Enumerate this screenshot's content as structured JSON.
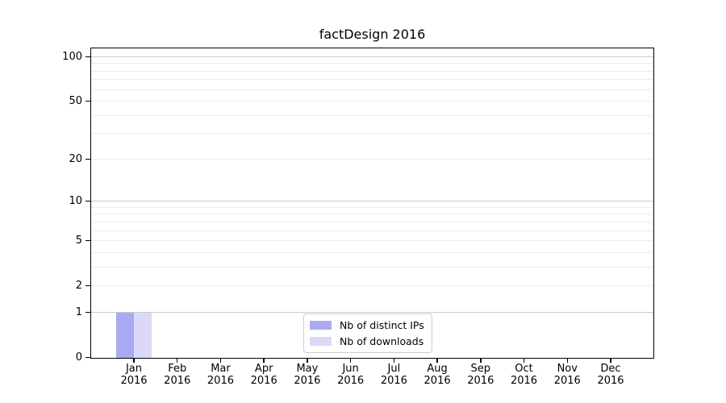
{
  "chart_data": {
    "type": "bar",
    "title": "factDesign 2016",
    "categories": [
      "Jan\n2016",
      "Feb\n2016",
      "Mar\n2016",
      "Apr\n2016",
      "May\n2016",
      "Jun\n2016",
      "Jul\n2016",
      "Aug\n2016",
      "Sep\n2016",
      "Oct\n2016",
      "Nov\n2016",
      "Dec\n2016"
    ],
    "series": [
      {
        "name": "Nb of distinct IPs",
        "color": "#aaaaf3",
        "values": [
          1,
          0,
          0,
          0,
          0,
          0,
          0,
          0,
          0,
          0,
          0,
          0
        ]
      },
      {
        "name": "Nb of downloads",
        "color": "#dadaf8",
        "values": [
          1,
          0,
          0,
          0,
          0,
          0,
          0,
          0,
          0,
          0,
          0,
          0
        ]
      }
    ],
    "xlabel": "",
    "ylabel": "",
    "yscale": "log1p",
    "ylim": [
      0,
      113
    ],
    "yticks": [
      {
        "value": 0,
        "label": "0"
      },
      {
        "value": 1,
        "label": "1"
      },
      {
        "value": 2,
        "label": "2"
      },
      {
        "value": 5,
        "label": "5"
      },
      {
        "value": 10,
        "label": "10"
      },
      {
        "value": 20,
        "label": "20"
      },
      {
        "value": 50,
        "label": "50"
      },
      {
        "value": 100,
        "label": "100"
      }
    ],
    "major_gridlines": [
      1,
      10,
      100
    ],
    "minor_gridlines": [
      2,
      3,
      4,
      5,
      6,
      7,
      8,
      9,
      20,
      30,
      40,
      50,
      60,
      70,
      80,
      90
    ],
    "grid": true,
    "legend": {
      "position": "lower center"
    }
  },
  "colors": {
    "grid_minor": "#ebebeb",
    "grid_major": "#c9c9c9",
    "spine": "#000000",
    "background": "#ffffff"
  }
}
